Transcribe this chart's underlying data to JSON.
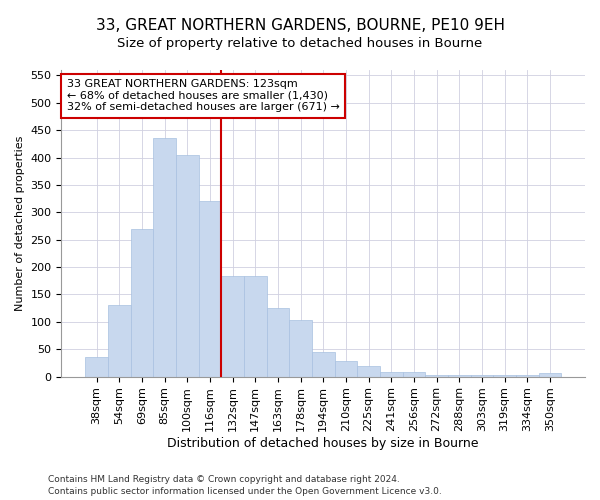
{
  "title1": "33, GREAT NORTHERN GARDENS, BOURNE, PE10 9EH",
  "title2": "Size of property relative to detached houses in Bourne",
  "xlabel": "Distribution of detached houses by size in Bourne",
  "ylabel": "Number of detached properties",
  "categories": [
    "38sqm",
    "54sqm",
    "69sqm",
    "85sqm",
    "100sqm",
    "116sqm",
    "132sqm",
    "147sqm",
    "163sqm",
    "178sqm",
    "194sqm",
    "210sqm",
    "225sqm",
    "241sqm",
    "256sqm",
    "272sqm",
    "288sqm",
    "303sqm",
    "319sqm",
    "334sqm",
    "350sqm"
  ],
  "values": [
    35,
    130,
    270,
    435,
    405,
    320,
    183,
    183,
    125,
    103,
    45,
    28,
    20,
    8,
    8,
    3,
    3,
    3,
    3,
    3,
    6
  ],
  "bar_color": "#c8d8ee",
  "bar_edge_color": "#a8c0e0",
  "vline_color": "#cc0000",
  "annotation_line1": "33 GREAT NORTHERN GARDENS: 123sqm",
  "annotation_line2": "← 68% of detached houses are smaller (1,430)",
  "annotation_line3": "32% of semi-detached houses are larger (671) →",
  "annotation_box_color": "white",
  "annotation_box_edge": "#cc0000",
  "ylim": [
    0,
    560
  ],
  "yticks": [
    0,
    50,
    100,
    150,
    200,
    250,
    300,
    350,
    400,
    450,
    500,
    550
  ],
  "footer1": "Contains HM Land Registry data © Crown copyright and database right 2024.",
  "footer2": "Contains public sector information licensed under the Open Government Licence v3.0.",
  "bg_color": "#ffffff",
  "grid_color": "#d0d0e0",
  "title1_fontsize": 11,
  "title2_fontsize": 9.5,
  "xlabel_fontsize": 9,
  "ylabel_fontsize": 8,
  "tick_fontsize": 8,
  "annot_fontsize": 8
}
